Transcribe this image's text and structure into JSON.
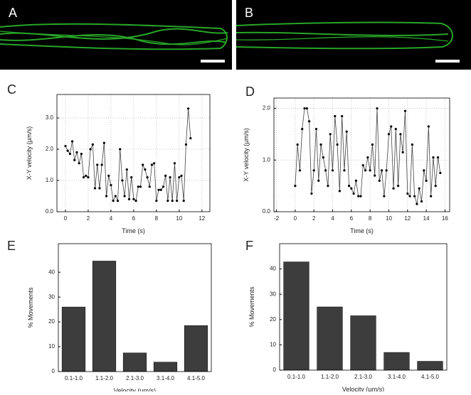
{
  "images": [
    {
      "label": "A"
    },
    {
      "label": "B"
    }
  ],
  "chart_data": [
    {
      "type": "line",
      "label": "C",
      "x_label": "Time (s)",
      "y_label": "X-Y velocity (µm/s)",
      "color": "#444444",
      "grid": true,
      "xlim": [
        -0.75,
        12.7
      ],
      "ylim": [
        0,
        3.75
      ],
      "xticks": [
        0,
        2,
        4,
        6,
        8,
        10,
        12
      ],
      "yticks": [
        {
          "value": 0,
          "label": "0.0"
        },
        {
          "value": 1,
          "label": "1.0"
        },
        {
          "value": 2,
          "label": "2.0"
        },
        {
          "value": 3,
          "label": "3.0"
        }
      ],
      "x": [
        0,
        0.2,
        0.4,
        0.6,
        0.8,
        1,
        1.2,
        1.4,
        1.6,
        1.8,
        2,
        2.2,
        2.4,
        2.6,
        2.8,
        3,
        3.2,
        3.4,
        3.6,
        3.8,
        4,
        4.2,
        4.4,
        4.6,
        4.8,
        5,
        5.2,
        5.4,
        5.6,
        5.8,
        6,
        6.2,
        6.4,
        6.6,
        6.8,
        7,
        7.2,
        7.4,
        7.6,
        7.8,
        8,
        8.2,
        8.4,
        8.6,
        8.8,
        9,
        9.2,
        9.4,
        9.6,
        9.8,
        10,
        10.2,
        10.4,
        10.6,
        10.8,
        11
      ],
      "values": [
        2.1,
        1.95,
        1.85,
        2.25,
        1.65,
        1.9,
        1.55,
        1.85,
        1.1,
        1.15,
        1.1,
        2.0,
        2.15,
        0.75,
        1.5,
        0.75,
        1.5,
        2.2,
        0.5,
        1.15,
        0.85,
        0.35,
        0.5,
        0.35,
        2.0,
        1.0,
        0.5,
        1.35,
        0.4,
        1.1,
        0.4,
        0.35,
        0.8,
        0.8,
        1.5,
        1.35,
        1.1,
        0.8,
        1.5,
        1.55,
        0.35,
        0.7,
        0.7,
        0.8,
        1.15,
        0.35,
        1.1,
        0.35,
        1.55,
        0.35,
        1.1,
        1.15,
        0.35,
        2.15,
        3.3,
        2.35
      ]
    },
    {
      "type": "line",
      "label": "D",
      "x_label": "Time (s)",
      "y_label": "X-Y velocity (µm/s)",
      "color": "#444444",
      "grid": true,
      "xlim": [
        -2.27,
        16.5
      ],
      "ylim": [
        0,
        2.2
      ],
      "xticks": [
        -2,
        0,
        2,
        4,
        6,
        8,
        10,
        12,
        14,
        16
      ],
      "yticks": [
        {
          "value": 0,
          "label": "0.0"
        },
        {
          "value": 1,
          "label": "1.0"
        },
        {
          "value": 2,
          "label": "2.0"
        }
      ],
      "x": [
        0,
        0.25,
        0.5,
        0.75,
        1,
        1.25,
        1.5,
        1.75,
        2,
        2.25,
        2.5,
        2.75,
        3,
        3.25,
        3.5,
        3.75,
        4,
        4.25,
        4.5,
        4.75,
        5,
        5.25,
        5.5,
        5.75,
        6,
        6.25,
        6.5,
        6.75,
        7,
        7.25,
        7.5,
        7.75,
        8,
        8.25,
        8.5,
        8.75,
        9,
        9.25,
        9.5,
        9.75,
        10,
        10.25,
        10.5,
        10.75,
        11,
        11.25,
        11.5,
        11.75,
        12,
        12.25,
        12.5,
        12.75,
        13,
        13.25,
        13.5,
        13.75,
        14,
        14.25,
        14.5,
        14.75,
        15,
        15.25,
        15.5
      ],
      "values": [
        0.5,
        1.3,
        0.8,
        1.6,
        2.0,
        2.0,
        1.75,
        0.35,
        0.8,
        1.6,
        0.6,
        1.3,
        1.05,
        0.8,
        0.5,
        1.5,
        0.8,
        1.85,
        1.3,
        0.4,
        1.85,
        0.8,
        1.55,
        0.5,
        0.45,
        0.35,
        0.6,
        0.3,
        0.3,
        0.9,
        0.8,
        1.05,
        0.8,
        1.3,
        0.7,
        2.0,
        0.6,
        0.8,
        0.3,
        0.8,
        1.5,
        1.65,
        0.45,
        1.6,
        0.5,
        1.5,
        1.15,
        1.95,
        0.35,
        0.3,
        1.3,
        0.3,
        0.15,
        0.45,
        0.2,
        0.8,
        0.6,
        1.65,
        0.3,
        1.05,
        0.5,
        1.05,
        0.75
      ]
    },
    {
      "type": "bar",
      "label": "E",
      "x_label": "Velocity (µm/s)",
      "y_label": "% Movements",
      "color": "#3d3d3d",
      "ylim": [
        0,
        51.5
      ],
      "yticks": [
        0,
        10,
        20,
        30,
        40
      ],
      "categories": [
        "0.1-1.0",
        "1.1-2.0",
        "2.1-3.0",
        "3.1-4.0",
        "4.1-5.0"
      ],
      "values": [
        26,
        44.5,
        7.5,
        3.8,
        18.5
      ]
    },
    {
      "type": "bar",
      "label": "F",
      "x_label": "Velocity (µm/s)",
      "y_label": "% Movements",
      "color": "#3d3d3d",
      "ylim": [
        0,
        50
      ],
      "yticks": [
        0,
        10,
        20,
        30,
        40
      ],
      "categories": [
        "0.1-1.0",
        "1.1-2.0",
        "2.1-3.0",
        "3.1-4.0",
        "4.1-5.0"
      ],
      "values": [
        42.8,
        25,
        21.5,
        7,
        3.5
      ]
    }
  ]
}
